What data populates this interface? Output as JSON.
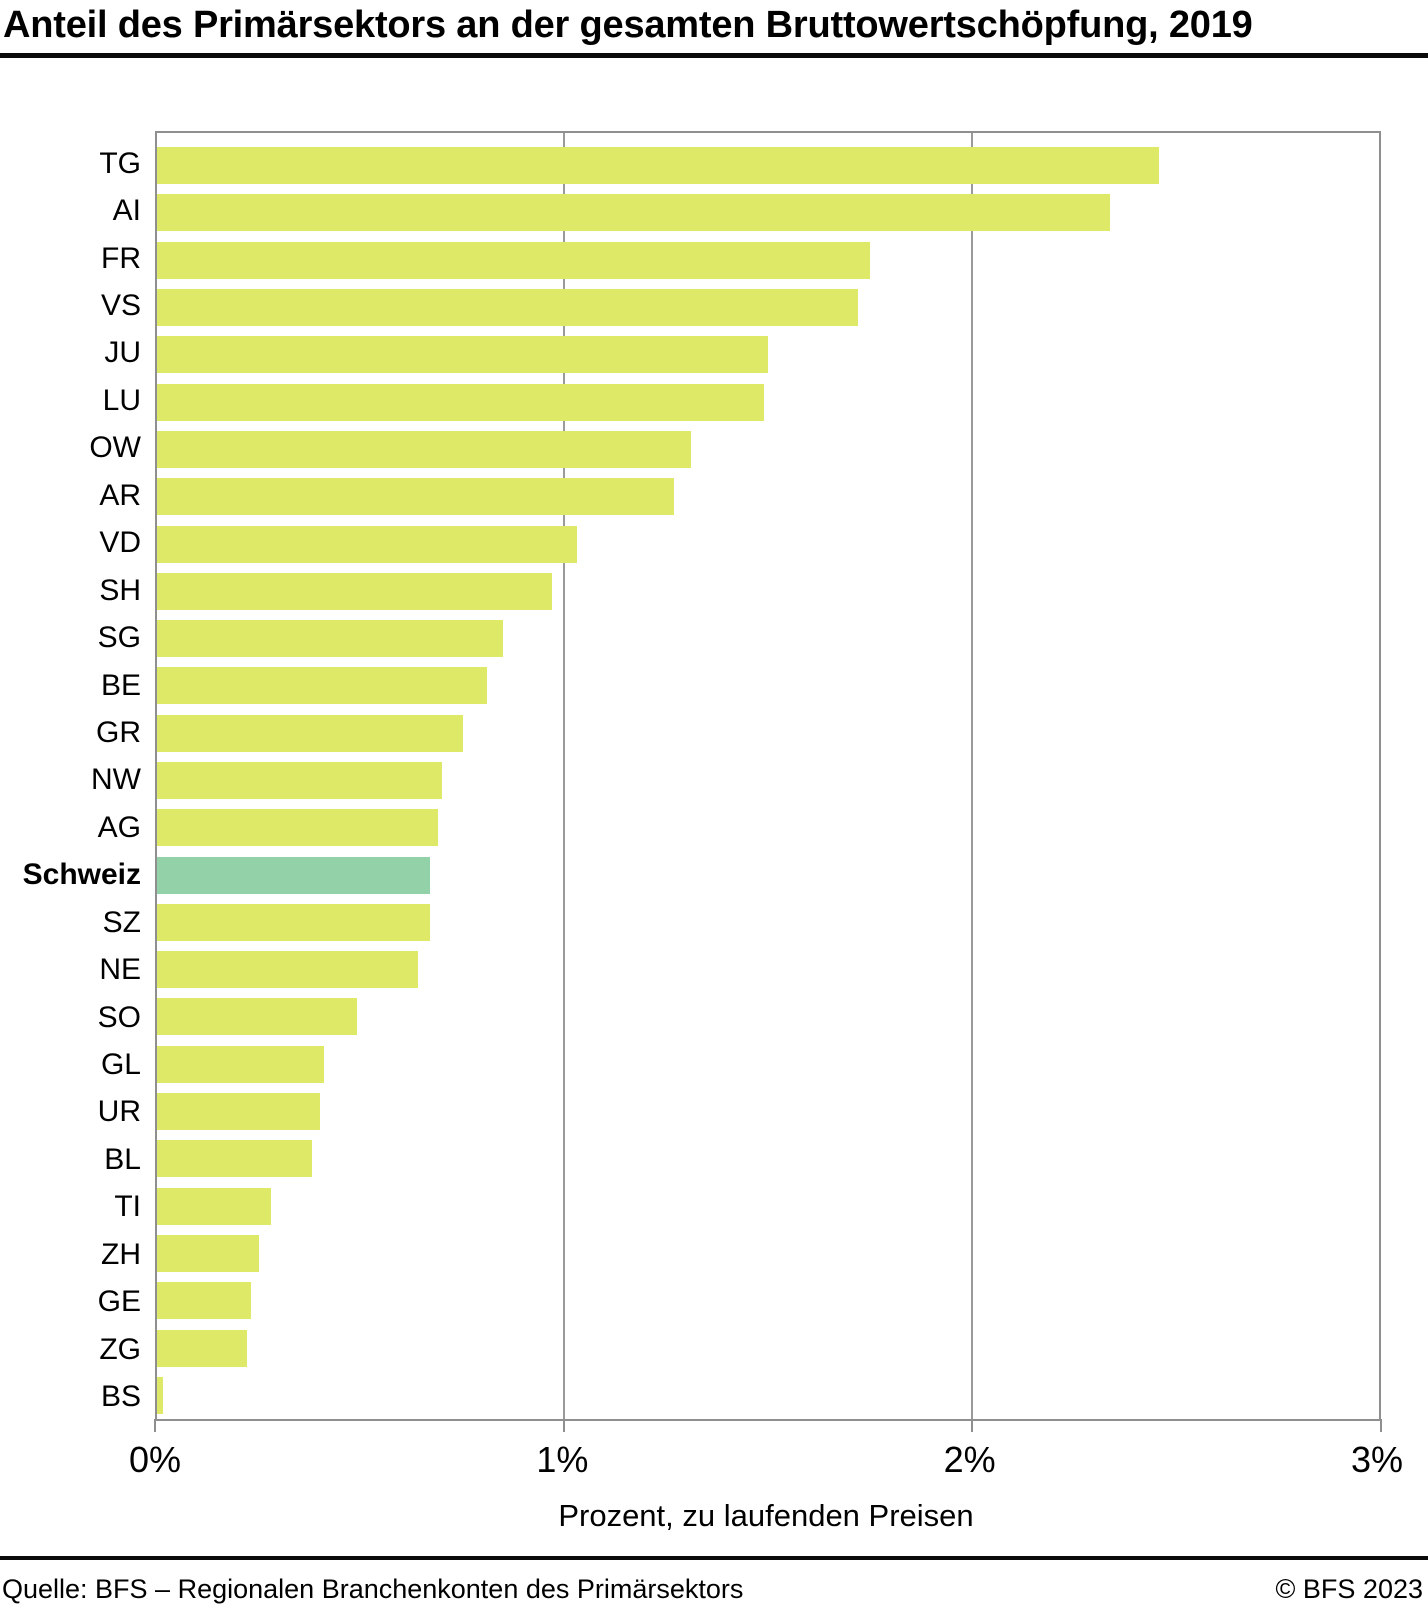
{
  "page": {
    "title": "Anteil des Primärsektors an der gesamten Bruttowertschöpfung, 2019",
    "source": "Quelle: BFS – Regionalen Branchenkonten des Primärsektors",
    "copyright": "© BFS 2023"
  },
  "chart_data": {
    "type": "bar",
    "orientation": "horizontal",
    "title": "Anteil des Primärsektors an der gesamten Bruttowertschöpfung, 2019",
    "xlabel": "Prozent, zu laufenden Preisen",
    "ylabel": "",
    "xlim": [
      0,
      3
    ],
    "x_ticks": [
      "0%",
      "1%",
      "2%",
      "3%"
    ],
    "x_tick_values": [
      0,
      1,
      2,
      3
    ],
    "gridline_values": [
      1,
      2
    ],
    "grid": "vertical gridlines at 1% and 2%, full box border",
    "legend": "none",
    "categories": [
      "TG",
      "AI",
      "FR",
      "VS",
      "JU",
      "LU",
      "OW",
      "AR",
      "VD",
      "SH",
      "SG",
      "BE",
      "GR",
      "NW",
      "AG",
      "Schweiz",
      "SZ",
      "NE",
      "SO",
      "GL",
      "UR",
      "BL",
      "TI",
      "ZH",
      "GE",
      "ZG",
      "BS"
    ],
    "values": [
      2.46,
      2.34,
      1.75,
      1.72,
      1.5,
      1.49,
      1.31,
      1.27,
      1.03,
      0.97,
      0.85,
      0.81,
      0.75,
      0.7,
      0.69,
      0.67,
      0.67,
      0.64,
      0.49,
      0.41,
      0.4,
      0.38,
      0.28,
      0.25,
      0.23,
      0.22,
      0.015
    ],
    "highlight_category": "Schweiz",
    "bar_color": "#dee968",
    "highlight_color": "#93d2a8",
    "gridline_color": "#9a9a9a",
    "border_color": "#8f8f8f"
  }
}
